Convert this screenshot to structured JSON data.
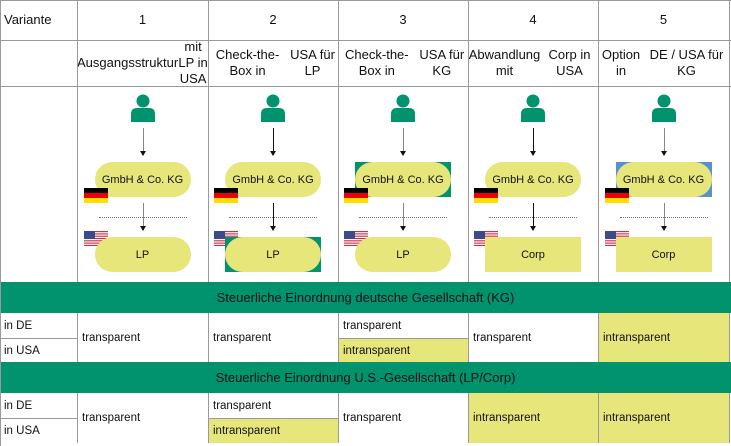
{
  "header": {
    "variant_label": "Variante"
  },
  "variants": [
    {
      "number": "1",
      "title": [
        "Ausgangsstruktur",
        "mit LP in USA"
      ],
      "parent": {
        "label": "GmbH & Co. KG",
        "shape": "pill",
        "frame": null
      },
      "child": {
        "label": "LP",
        "shape": "pill",
        "frame": null
      },
      "arrow_color": "#888888"
    },
    {
      "number": "2",
      "title": [
        "Check-the-Box in",
        "USA für LP"
      ],
      "parent": {
        "label": "GmbH & Co. KG",
        "shape": "pill",
        "frame": null
      },
      "child": {
        "label": "LP",
        "shape": "pill",
        "frame": "#00936e"
      },
      "arrow_color": "#111111"
    },
    {
      "number": "3",
      "title": [
        "Check-the-Box in",
        "USA für KG"
      ],
      "parent": {
        "label": "GmbH & Co. KG",
        "shape": "pill",
        "frame": "#00936e"
      },
      "child": {
        "label": "LP",
        "shape": "pill",
        "frame": null
      },
      "arrow_color": "#888888"
    },
    {
      "number": "4",
      "title": [
        "Abwandlung mit",
        "Corp in USA"
      ],
      "parent": {
        "label": "GmbH & Co. KG",
        "shape": "pill",
        "frame": null
      },
      "child": {
        "label": "Corp",
        "shape": "rect",
        "frame": null
      },
      "arrow_color": "#111111"
    },
    {
      "number": "5",
      "title": [
        "Option in",
        "DE / USA für KG"
      ],
      "parent": {
        "label": "GmbH & Co. KG",
        "shape": "pill",
        "frame": "#5b8fd0"
      },
      "child": {
        "label": "Corp",
        "shape": "rect",
        "frame": null
      },
      "arrow_color": "#888888"
    }
  ],
  "sections": [
    {
      "title": "Steuerliche Einordnung deutsche Gesellschaft (KG)",
      "row_labels": [
        "in DE",
        "in USA"
      ],
      "cells": [
        {
          "merged": true,
          "text": "transparent",
          "highlight": false
        },
        {
          "merged": true,
          "text": "transparent",
          "highlight": false
        },
        {
          "merged": false,
          "de": {
            "text": "transparent",
            "highlight": false
          },
          "usa": {
            "text": "intransparent",
            "highlight": true
          }
        },
        {
          "merged": true,
          "text": "transparent",
          "highlight": false
        },
        {
          "merged": true,
          "text": "intransparent",
          "highlight": true
        }
      ]
    },
    {
      "title": "Steuerliche Einordnung U.S.-Gesellschaft (LP/Corp)",
      "row_labels": [
        "in DE",
        "in USA"
      ],
      "cells": [
        {
          "merged": true,
          "text": "transparent",
          "highlight": false
        },
        {
          "merged": false,
          "de": {
            "text": "transparent",
            "highlight": false
          },
          "usa": {
            "text": "intransparent",
            "highlight": true
          }
        },
        {
          "merged": true,
          "text": "transparent",
          "highlight": false
        },
        {
          "merged": true,
          "text": "intransparent",
          "highlight": true
        },
        {
          "merged": true,
          "text": "intransparent",
          "highlight": true
        }
      ]
    }
  ],
  "colors": {
    "green": "#00936e",
    "yellow": "#e6e67a",
    "grid": "#9a9a9a"
  }
}
